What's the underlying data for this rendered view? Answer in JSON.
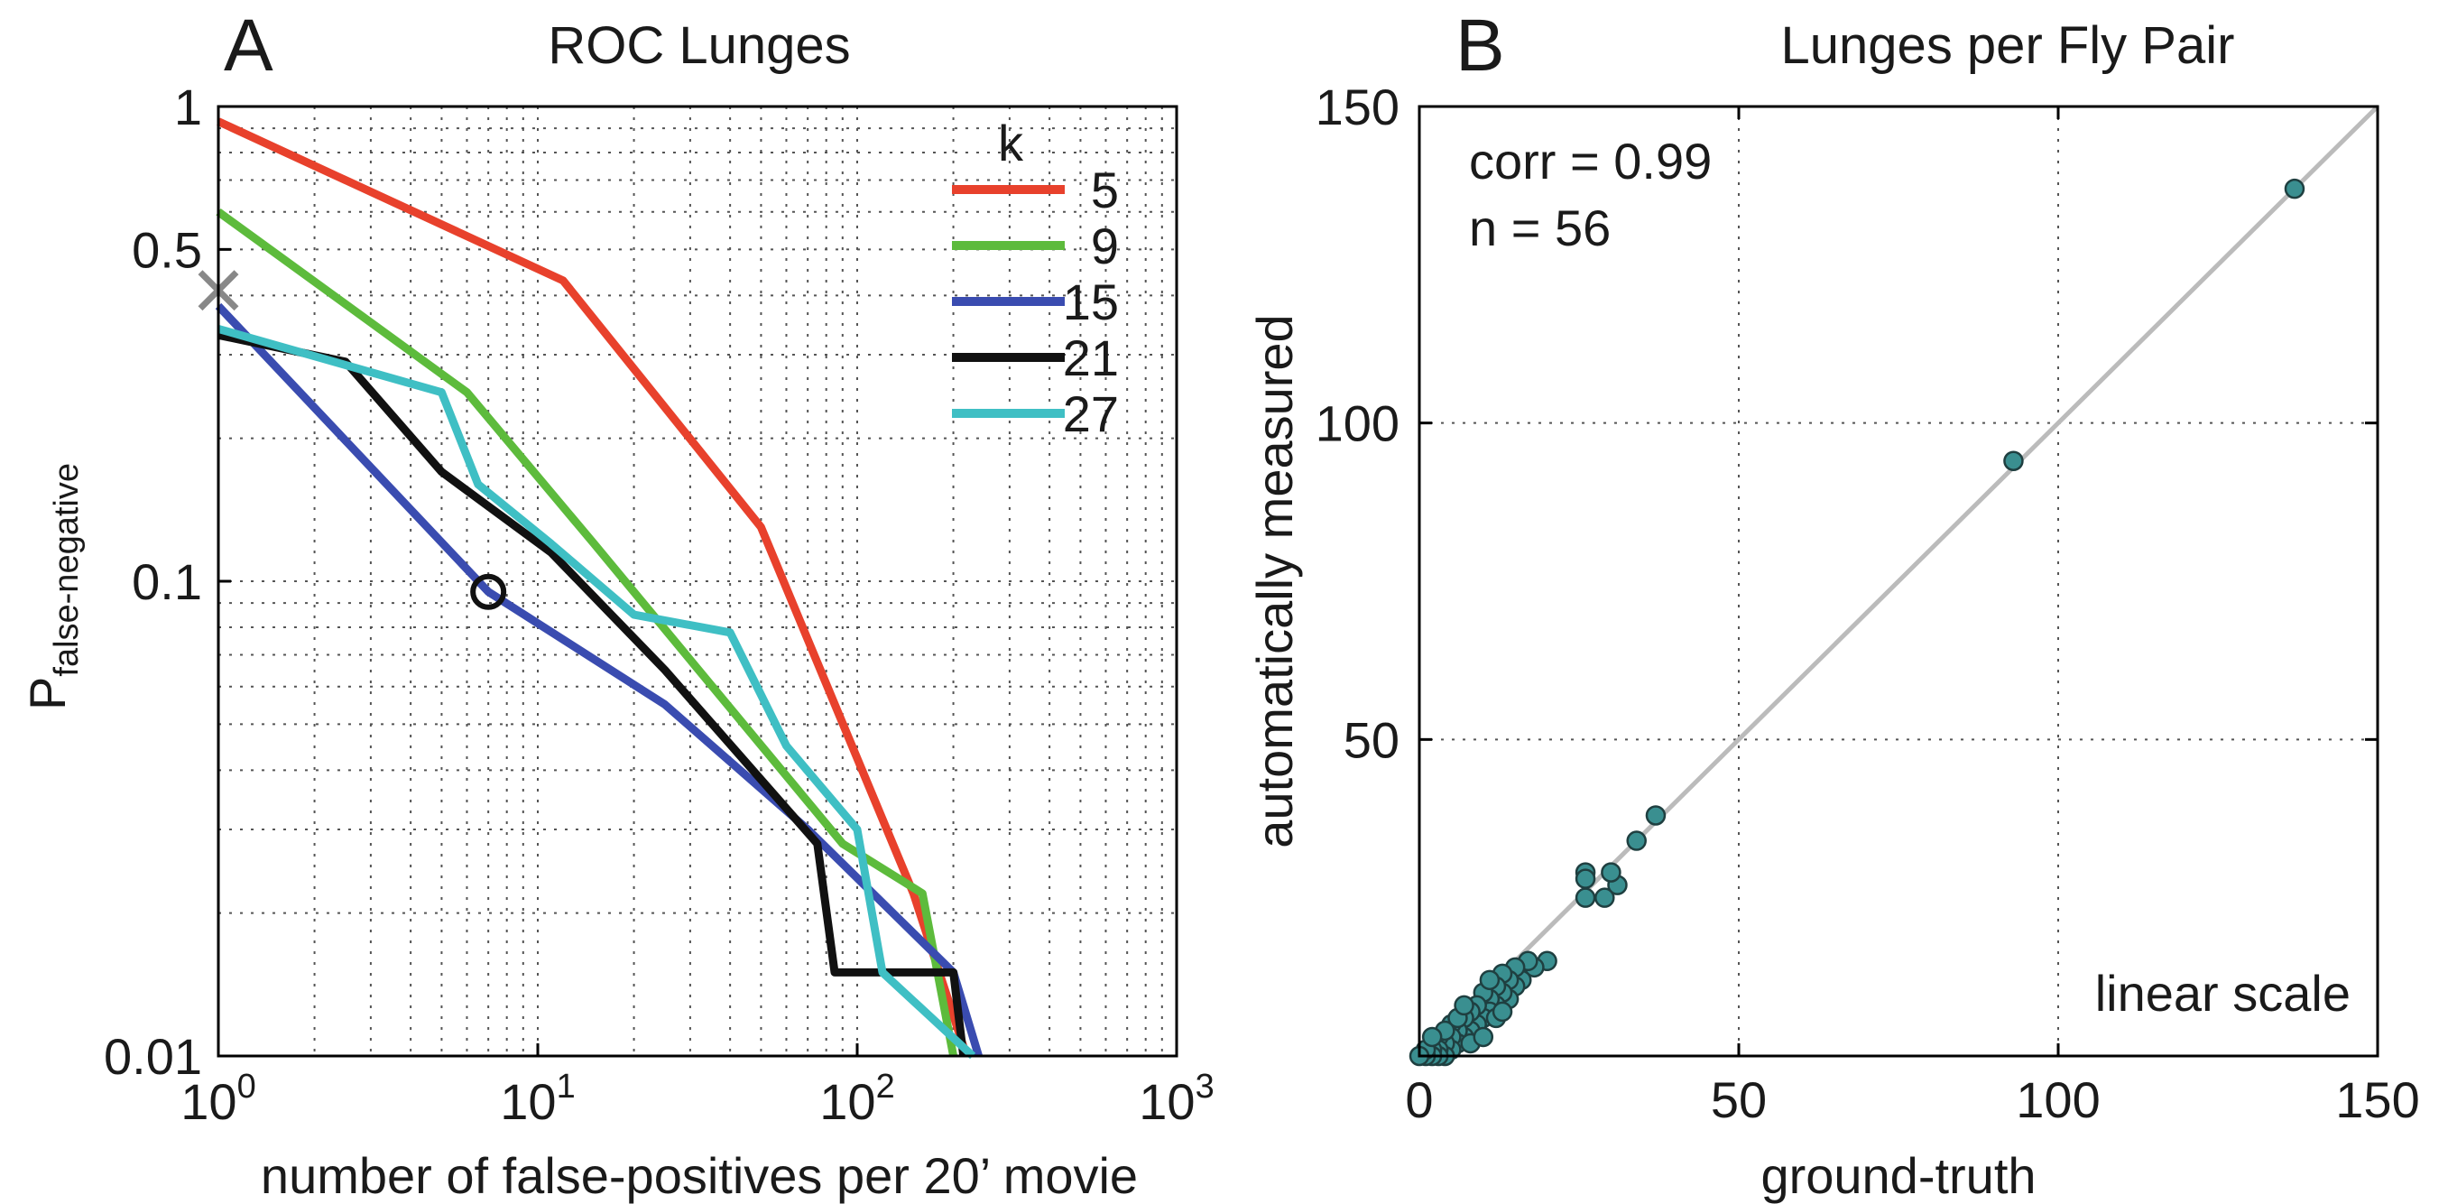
{
  "chart_data": [
    {
      "panel": "A",
      "type": "line",
      "title": "ROC Lunges",
      "xlabel": "number of false-positives per 20’ movie",
      "ylabel_main": "P",
      "ylabel_sub": "false-negative",
      "xscale": "log",
      "yscale": "log",
      "xlim": [
        1,
        1000
      ],
      "ylim": [
        0.01,
        1
      ],
      "grid": true,
      "x_ticks": [
        {
          "base": "10",
          "exp": "0"
        },
        {
          "base": "10",
          "exp": "1"
        },
        {
          "base": "10",
          "exp": "2"
        },
        {
          "base": "10",
          "exp": "3"
        }
      ],
      "y_ticks": [
        "1",
        "0.5",
        "0.1",
        "0.01"
      ],
      "legend_title": "k",
      "legend_position": "top-right",
      "series": [
        {
          "name": "5",
          "color": "#e8412c",
          "x": [
            1,
            12,
            50,
            150,
            220
          ],
          "y": [
            0.93,
            0.43,
            0.13,
            0.022,
            0.01
          ]
        },
        {
          "name": "9",
          "color": "#5dbb3c",
          "x": [
            1,
            6,
            15,
            90,
            160,
            200
          ],
          "y": [
            0.6,
            0.25,
            0.12,
            0.028,
            0.022,
            0.01
          ]
        },
        {
          "name": "15",
          "color": "#3a4cb0",
          "x": [
            1,
            7,
            25,
            70,
            200,
            240
          ],
          "y": [
            0.38,
            0.095,
            0.055,
            0.03,
            0.015,
            0.01
          ]
        },
        {
          "name": "21",
          "color": "#111111",
          "x": [
            1,
            2.5,
            5,
            11,
            25,
            75,
            85,
            200,
            215
          ],
          "y": [
            0.33,
            0.29,
            0.17,
            0.115,
            0.065,
            0.028,
            0.015,
            0.015,
            0.01
          ]
        },
        {
          "name": "27",
          "color": "#3fbfc4",
          "x": [
            1,
            5,
            6.5,
            11,
            20,
            40,
            60,
            100,
            120,
            230
          ],
          "y": [
            0.34,
            0.25,
            0.16,
            0.12,
            0.085,
            0.078,
            0.045,
            0.03,
            0.015,
            0.01
          ]
        }
      ],
      "markers": [
        {
          "shape": "x",
          "color": "#888888",
          "x": 1,
          "y": 0.41
        },
        {
          "shape": "circle",
          "color": "#111111",
          "x": 7,
          "y": 0.095
        }
      ]
    },
    {
      "panel": "B",
      "type": "scatter",
      "title": "Lunges per Fly Pair",
      "xlabel": "ground-truth",
      "ylabel": "automatically measured",
      "xlim": [
        0,
        150
      ],
      "ylim": [
        0,
        150
      ],
      "x_ticks": [
        "0",
        "50",
        "100",
        "150"
      ],
      "y_ticks": [
        "50",
        "100",
        "150"
      ],
      "grid": true,
      "annotations": [
        "corr = 0.99",
        "n = 56"
      ],
      "scale_note": "linear scale",
      "identity_line": {
        "from": [
          0,
          0
        ],
        "to": [
          150,
          150
        ],
        "color": "#bbbbbb"
      },
      "point_color": "#3a8f90",
      "points": [
        [
          137,
          137
        ],
        [
          93,
          94
        ],
        [
          37,
          38
        ],
        [
          34,
          34
        ],
        [
          31,
          27
        ],
        [
          30,
          29
        ],
        [
          29,
          25
        ],
        [
          26,
          29
        ],
        [
          26,
          28
        ],
        [
          26,
          25
        ],
        [
          20,
          15
        ],
        [
          18,
          14
        ],
        [
          17,
          15
        ],
        [
          16,
          12
        ],
        [
          15,
          11
        ],
        [
          15,
          14
        ],
        [
          14,
          12
        ],
        [
          14,
          9
        ],
        [
          13,
          13
        ],
        [
          13,
          10
        ],
        [
          12,
          11
        ],
        [
          12,
          8
        ],
        [
          11,
          9
        ],
        [
          11,
          7
        ],
        [
          10,
          6
        ],
        [
          10,
          10
        ],
        [
          9,
          8
        ],
        [
          9,
          5
        ],
        [
          8,
          4
        ],
        [
          8,
          7
        ],
        [
          7,
          6
        ],
        [
          7,
          3
        ],
        [
          6,
          4
        ],
        [
          6,
          2
        ],
        [
          5,
          5
        ],
        [
          5,
          3
        ],
        [
          5,
          1
        ],
        [
          4,
          2
        ],
        [
          4,
          0
        ],
        [
          3,
          3
        ],
        [
          3,
          1
        ],
        [
          3,
          0
        ],
        [
          2,
          1
        ],
        [
          2,
          0
        ],
        [
          1,
          0
        ],
        [
          1,
          1
        ],
        [
          0,
          0
        ],
        [
          6,
          6
        ],
        [
          8,
          2
        ],
        [
          10,
          3
        ],
        [
          11,
          12
        ],
        [
          12,
          6
        ],
        [
          13,
          7
        ],
        [
          7,
          8
        ],
        [
          4,
          4
        ],
        [
          2,
          3
        ]
      ]
    }
  ]
}
